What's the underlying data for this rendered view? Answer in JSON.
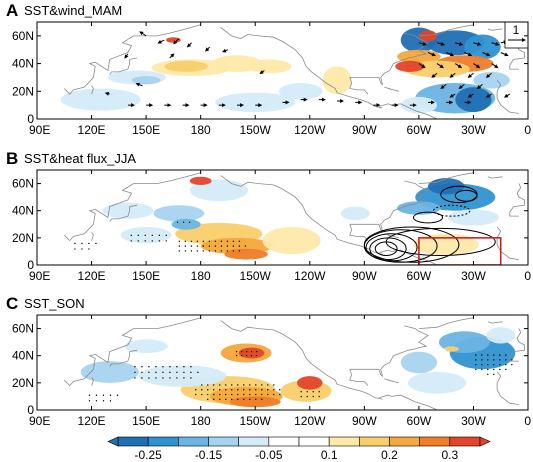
{
  "panels": [
    {
      "letter": "A",
      "title": "SST&wind_MAM",
      "ref_vector_label": "1"
    },
    {
      "letter": "B",
      "title": "SST&heat flux_JJA"
    },
    {
      "letter": "C",
      "title": "SST_SON"
    }
  ],
  "axes": {
    "x_ticks": [
      "90E",
      "120E",
      "150E",
      "180",
      "150W",
      "120W",
      "90W",
      "60W",
      "30W",
      "0"
    ],
    "y_ticks": [
      "0",
      "20N",
      "40N",
      "60N"
    ]
  },
  "colorbar": {
    "labels": [
      "-0.25",
      "-0.15",
      "-0.05",
      "0.1",
      "0.2",
      "0.3"
    ],
    "colors": [
      "#1f6fb4",
      "#2f92d0",
      "#6cb4e4",
      "#a6d3f0",
      "#d4ebf8",
      "#ffffff",
      "#ffffff",
      "#fde9a8",
      "#f9cf6b",
      "#f4a83d",
      "#ef7d2a",
      "#e2452a"
    ]
  },
  "palette": {
    "land": "#8a8a8a",
    "box": "#d11f1f",
    "arrow": "#000000"
  }
}
